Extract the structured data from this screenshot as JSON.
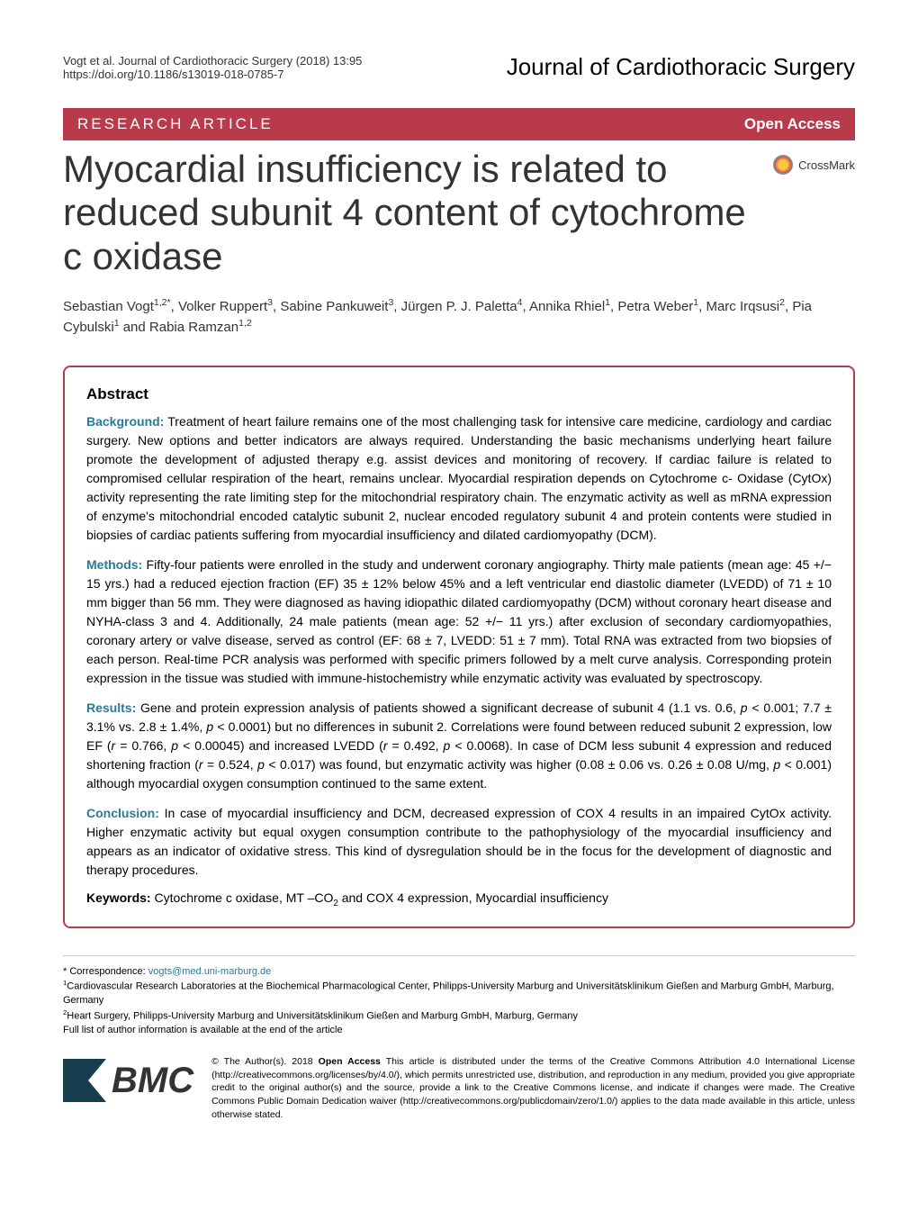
{
  "header": {
    "citation": "Vogt et al. Journal of Cardiothoracic Surgery  (2018) 13:95",
    "doi": "https://doi.org/10.1186/s13019-018-0785-7",
    "journal": "Journal of Cardiothoracic Surgery"
  },
  "bar": {
    "article_type": "RESEARCH ARTICLE",
    "open_access": "Open Access"
  },
  "title": "Myocardial insufficiency is related to reduced subunit 4 content of cytochrome c oxidase",
  "crossmark": "CrossMark",
  "authors_html": "Sebastian Vogt<sup>1,2*</sup>, Volker Ruppert<sup>3</sup>, Sabine Pankuweit<sup>3</sup>, Jürgen P. J. Paletta<sup>4</sup>, Annika Rhiel<sup>1</sup>, Petra Weber<sup>1</sup>, Marc Irqsusi<sup>2</sup>, Pia Cybulski<sup>1</sup> and Rabia Ramzan<sup>1,2</sup>",
  "abstract": {
    "heading": "Abstract",
    "background_label": "Background:",
    "background": "Treatment of heart failure remains one of the most challenging task for intensive care medicine, cardiology and cardiac surgery. New options and better indicators are always required. Understanding the basic mechanisms underlying heart failure promote the development of adjusted therapy e.g. assist devices and monitoring of recovery. If cardiac failure is related to compromised cellular respiration of the heart, remains unclear. Myocardial respiration depends on Cytochrome c- Oxidase (CytOx) activity representing the rate limiting step for the mitochondrial respiratory chain. The enzymatic activity as well as mRNA expression of enzyme's mitochondrial encoded catalytic subunit 2, nuclear encoded regulatory subunit 4 and protein contents were studied in biopsies of cardiac patients suffering from myocardial insufficiency and dilated cardiomyopathy (DCM).",
    "methods_label": "Methods:",
    "methods": "Fifty-four patients were enrolled in the study and underwent coronary angiography. Thirty male patients (mean age: 45 +/− 15 yrs.) had a reduced ejection fraction (EF) 35 ± 12% below 45% and a left ventricular end diastolic diameter (LVEDD) of 71 ± 10 mm bigger than 56 mm. They were diagnosed as having idiopathic dilated cardiomyopathy (DCM) without coronary heart disease and NYHA-class 3 and 4. Additionally, 24 male patients (mean age: 52 +/− 11 yrs.) after exclusion of secondary cardiomyopathies, coronary artery or valve disease, served as control (EF: 68 ± 7, LVEDD: 51 ± 7 mm). Total RNA was extracted from two biopsies of each person. Real-time PCR analysis was performed with specific primers followed by a melt curve analysis. Corresponding protein expression in the tissue was studied with immune-histochemistry while enzymatic activity was evaluated by spectroscopy.",
    "results_label": "Results:",
    "results_html": "Gene and protein expression analysis of patients showed a significant decrease of subunit 4 (1.1 vs. 0.6, <i>p</i> < 0.001; 7.7 ± 3.1% vs. 2.8 ± 1.4%, <i>p</i> < 0.0001) but no differences in subunit 2. Correlations were found between reduced subunit 2 expression, low EF (<i>r</i> = 0.766, <i>p</i> < 0.00045) and increased LVEDD (<i>r</i> = 0.492, <i>p</i> < 0.0068). In case of DCM less subunit 4 expression and reduced shortening fraction (<i>r</i> = 0.524, <i>p</i> < 0.017) was found, but enzymatic activity was higher (0.08 ± 0.06 vs. 0.26 ± 0.08 U/mg, <i>p</i> < 0.001) although myocardial oxygen consumption continued to the same extent.",
    "conclusion_label": "Conclusion:",
    "conclusion": "In case of myocardial insufficiency and DCM, decreased expression of COX 4 results in an impaired CytOx activity. Higher enzymatic activity but equal oxygen consumption contribute to the pathophysiology of the myocardial insufficiency and appears as an indicator of oxidative stress. This kind of dysregulation should be in the focus for the development of diagnostic and therapy procedures.",
    "keywords_label": "Keywords:",
    "keywords_html": "Cytochrome c oxidase, MT –CO<sub>2</sub> and COX 4 expression, Myocardial insufficiency"
  },
  "footer": {
    "corr_label": "* Correspondence: ",
    "corr_email": "vogts@med.uni-marburg.de",
    "affil1": "<sup>1</sup>Cardiovascular Research Laboratories at the Biochemical Pharmacological Center, Philipps-University Marburg and Universitätsklinikum Gießen and Marburg GmbH, Marburg, Germany",
    "affil2": "<sup>2</sup>Heart Surgery, Philipps-University Marburg and Universitätsklinikum Gießen and Marburg GmbH, Marburg, Germany",
    "full_list": "Full list of author information is available at the end of the article",
    "bmc": "BMC",
    "license_html": "© The Author(s). 2018 <b>Open Access</b> This article is distributed under the terms of the Creative Commons Attribution 4.0 International License (http://creativecommons.org/licenses/by/4.0/), which permits unrestricted use, distribution, and reproduction in any medium, provided you give appropriate credit to the original author(s) and the source, provide a link to the Creative Commons license, and indicate if changes were made. The Creative Commons Public Domain Dedication waiver (http://creativecommons.org/publicdomain/zero/1.0/) applies to the data made available in this article, unless otherwise stated."
  },
  "colors": {
    "brand": "#b93a4a",
    "link": "#2a7a9a",
    "bmc": "#173e4f"
  }
}
